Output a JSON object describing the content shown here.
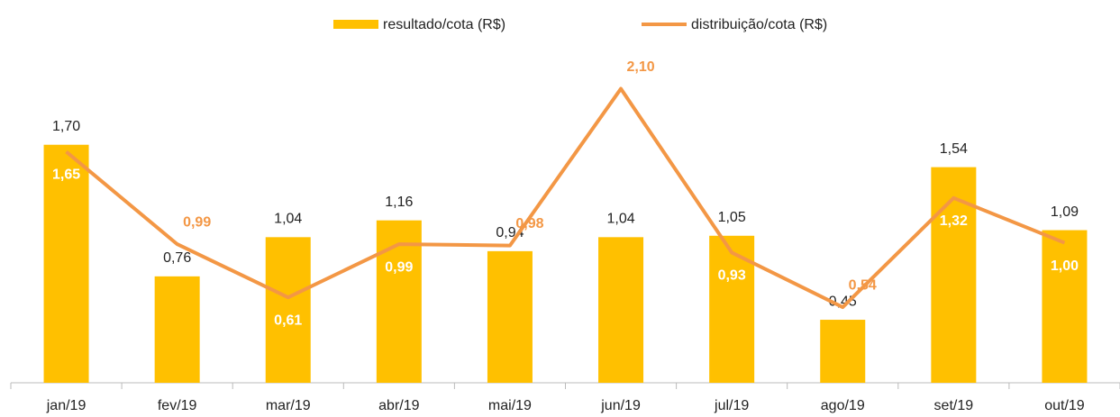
{
  "chart_data": {
    "type": "bar",
    "categories": [
      "jan/19",
      "fev/19",
      "mar/19",
      "abr/19",
      "mai/19",
      "jun/19",
      "jul/19",
      "ago/19",
      "set/19",
      "out/19"
    ],
    "series": [
      {
        "name": "resultado/cota (R$)",
        "type": "bar",
        "color": "#FFC000",
        "values": [
          1.7,
          0.76,
          1.04,
          1.16,
          0.94,
          1.04,
          1.05,
          0.45,
          1.54,
          1.09
        ],
        "value_labels": [
          "1,70",
          "0,76",
          "1,04",
          "1,16",
          "0,94",
          "1,04",
          "1,05",
          "0,45",
          "1,54",
          "1,09"
        ]
      },
      {
        "name": "distribuição/cota (R$)",
        "type": "line",
        "color": "#F39745",
        "values": [
          1.65,
          0.99,
          0.61,
          0.99,
          0.98,
          2.1,
          0.93,
          0.54,
          1.32,
          1.0
        ],
        "value_labels": [
          "1,65",
          "0,99",
          "0,61",
          "0,99",
          "0,98",
          "2,10",
          "0,93",
          "0,54",
          "1,32",
          "1,00"
        ]
      }
    ],
    "ylim": [
      0,
      2.2
    ],
    "legend": "top"
  }
}
